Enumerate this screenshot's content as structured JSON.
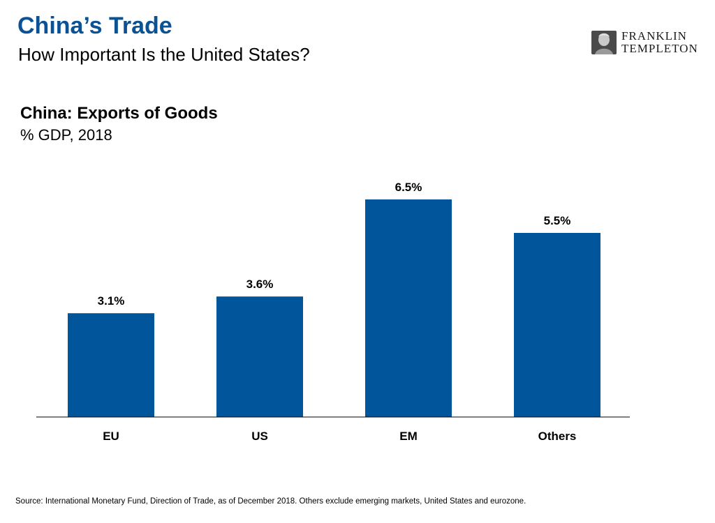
{
  "header": {
    "title": "China’s Trade",
    "subtitle": "How Important Is the United States?"
  },
  "logo": {
    "line1": "FRANKLIN",
    "line2": "TEMPLETON",
    "icon": "franklin-portrait-icon"
  },
  "chart_data": {
    "type": "bar",
    "title": "China: Exports of Goods",
    "subtitle": "% GDP, 2018",
    "categories": [
      "EU",
      "US",
      "EM",
      "Others"
    ],
    "values": [
      3.1,
      3.6,
      6.5,
      5.5
    ],
    "data_labels": [
      "3.1%",
      "3.6%",
      "6.5%",
      "5.5%"
    ],
    "xlabel": "",
    "ylabel": "",
    "ylim": [
      0,
      7
    ],
    "grid": false,
    "legend": "none",
    "bar_color": "#00559b"
  },
  "footer": {
    "source": "Source: International Monetary Fund, Direction of Trade, as of December 2018. Others exclude emerging markets, United States and eurozone."
  }
}
